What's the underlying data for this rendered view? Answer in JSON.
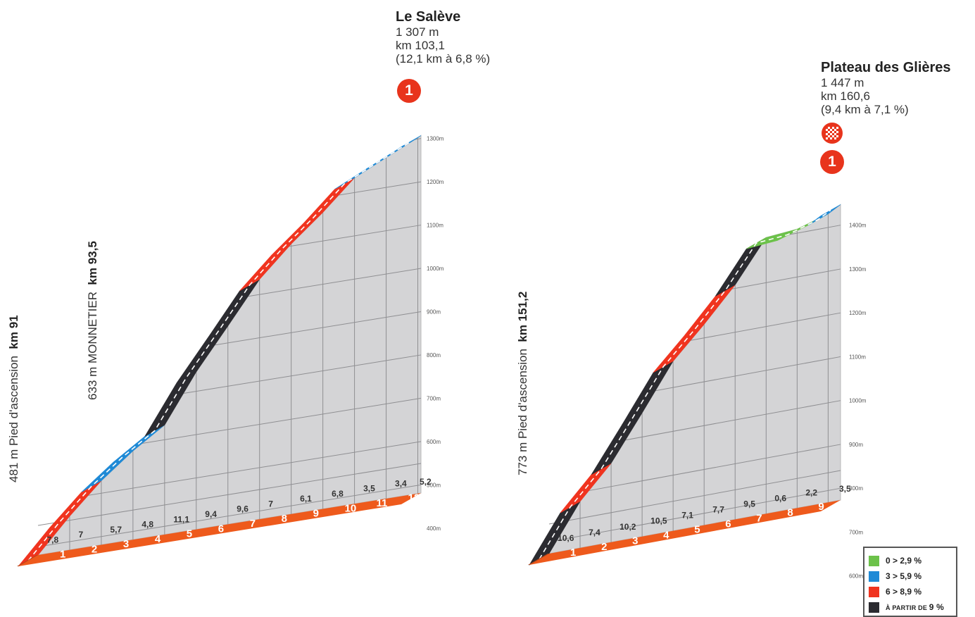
{
  "colors": {
    "green": "#6cc24a",
    "blue": "#1f8ad6",
    "red": "#f0341f",
    "black": "#2b2b30",
    "base_orange": "#ee5a1c",
    "base_dark": "#b5451a",
    "face": "#d4d4d6",
    "side": "#bdbdbf"
  },
  "chart_data": [
    {
      "type": "area",
      "summit": {
        "name": "Le Salève",
        "altitude": "1 307 m",
        "km": "km 103,1",
        "climb": "(12,1 km à 6,8 %)",
        "badge": "1"
      },
      "start_label": {
        "prefix": "481 m Pied d'ascension",
        "km": "km 91"
      },
      "mid_label": {
        "prefix": "633 m MONNETIER",
        "km": "km 93,5"
      },
      "y_ticks": [
        "1300m",
        "1200m",
        "1100m",
        "1000m",
        "900m",
        "800m",
        "700m",
        "600m",
        "500m",
        "400m"
      ],
      "y_tick_values": [
        1300,
        1200,
        1100,
        1000,
        900,
        800,
        700,
        600,
        500,
        400
      ],
      "km_markers": [
        "1",
        "2",
        "3",
        "4",
        "5",
        "6",
        "7",
        "8",
        "9",
        "10",
        "11",
        "12"
      ],
      "gradients": [
        "7,8",
        "7",
        "5,7",
        "4,8",
        "11,1",
        "9,4",
        "9,6",
        "7",
        "6,1",
        "6,8",
        "3,5",
        "3,4",
        "5,2"
      ],
      "profile": {
        "x_km": [
          0,
          1,
          2,
          3,
          4,
          5,
          6,
          7,
          8,
          9,
          10,
          11,
          12,
          12.1
        ],
        "altitude_m": [
          481,
          559,
          629,
          686,
          734,
          845,
          939,
          1035,
          1105,
          1166,
          1234,
          1269,
          1303,
          1307
        ],
        "segment_colors": [
          "red",
          "red",
          "blue",
          "blue",
          "black",
          "black",
          "black",
          "red",
          "red",
          "red",
          "blue",
          "blue",
          "blue"
        ]
      }
    },
    {
      "type": "area",
      "summit": {
        "name": "Plateau des Glières",
        "altitude": "1 447 m",
        "km": "km 160,6",
        "climb": "(9,4 km à 7,1 %)",
        "badge": "1"
      },
      "start_label": {
        "prefix": "773 m Pied d'ascension",
        "km": "km 151,2"
      },
      "y_ticks": [
        "1400m",
        "1300m",
        "1200m",
        "1100m",
        "1000m",
        "900m",
        "800m",
        "700m",
        "600m"
      ],
      "y_tick_values": [
        1400,
        1300,
        1200,
        1100,
        1000,
        900,
        800,
        700,
        600
      ],
      "km_markers": [
        "1",
        "2",
        "3",
        "4",
        "5",
        "6",
        "7",
        "8",
        "9"
      ],
      "gradients": [
        "10,6",
        "7,4",
        "10,2",
        "10,5",
        "7,1",
        "7,7",
        "9,5",
        "0,6",
        "2,2",
        "3,5"
      ],
      "profile": {
        "x_km": [
          0,
          1,
          2,
          3,
          4,
          5,
          6,
          7,
          8,
          9,
          9.4
        ],
        "altitude_m": [
          773,
          879,
          953,
          1055,
          1160,
          1231,
          1308,
          1403,
          1409,
          1431,
          1447
        ],
        "segment_colors": [
          "black",
          "red",
          "black",
          "black",
          "red",
          "red",
          "black",
          "green",
          "green",
          "blue"
        ]
      }
    }
  ],
  "legend": [
    {
      "label": "0 > 2,9 %",
      "color": "green"
    },
    {
      "label": "3 > 5,9 %",
      "color": "blue"
    },
    {
      "label": "6 > 8,9 %",
      "color": "red"
    },
    {
      "label_prefix": "À PARTIR DE",
      "label_value": "9 %",
      "color": "black"
    }
  ]
}
